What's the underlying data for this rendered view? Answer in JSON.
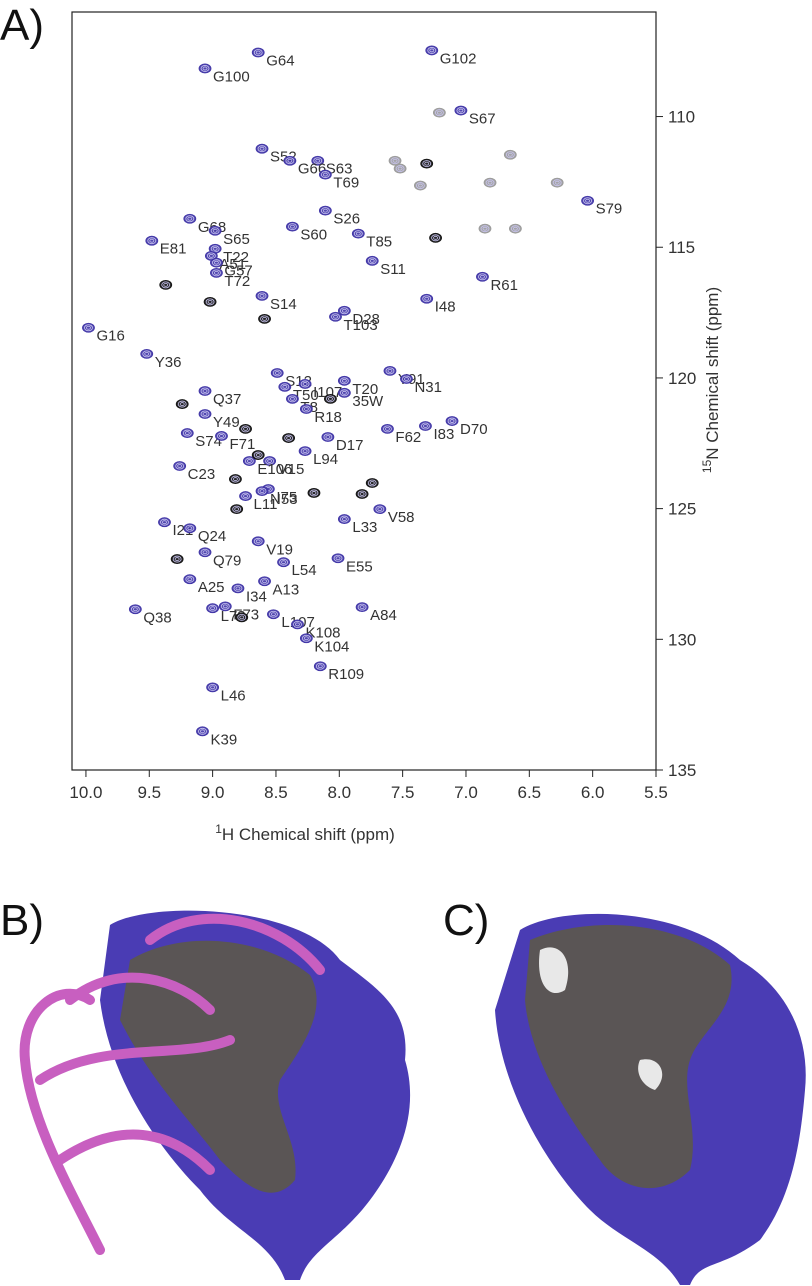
{
  "chart_data": {
    "type": "scatter",
    "panel_label": "A)",
    "x_label_sup": "1",
    "x_label": "H Chemical shift (ppm)",
    "y_label_sup": "15",
    "y_label": "N Chemical shift (ppm)",
    "xlim": [
      10.11,
      5.5
    ],
    "ylim": [
      135,
      106
    ],
    "xticks": [
      {
        "value": 10,
        "label": "10.0"
      },
      9.5,
      {
        "value": 9,
        "label": "9.0"
      },
      8.5,
      {
        "value": 8,
        "label": "8.0"
      },
      7.5,
      {
        "value": 7,
        "label": "7.0"
      },
      6.5,
      {
        "value": 6,
        "label": "6.0"
      },
      5.5
    ],
    "yticks": [
      110,
      115,
      120,
      125,
      130,
      135
    ],
    "series": [
      {
        "color": "#3f34a6",
        "labels": [
          "G64",
          "G100",
          "G102",
          "S67",
          "S52",
          "S63",
          "G66",
          "T69",
          "S79",
          "G68",
          "S65",
          "S26",
          "S60",
          "T85",
          "E81",
          "T22",
          "A51",
          "G57",
          "T72",
          "S11",
          "R61",
          "S14",
          "I48",
          "D28",
          "T103",
          "G16",
          "Y36",
          "S12",
          "I107",
          "T20",
          "Y91",
          "N31",
          "Q37",
          "T50",
          "35W",
          "T8",
          "R18",
          "Y49",
          "D70",
          "I83",
          "F62",
          "S74",
          "D17",
          "F71",
          "L94",
          "C23",
          "V15",
          "E106",
          "L11",
          "I75",
          "N53",
          "V58",
          "L33",
          "I21",
          "Q24",
          "V19",
          "Q79",
          "L54",
          "E55",
          "A25",
          "I34",
          "A13",
          "F73",
          "L73",
          "Q38",
          "L107",
          "A84",
          "K108",
          "K104",
          "R109",
          "L46",
          "K39"
        ],
        "x": [
          8.64,
          9.06,
          7.27,
          7.04,
          8.61,
          8.17,
          8.39,
          8.11,
          6.04,
          9.18,
          8.98,
          8.11,
          8.37,
          7.85,
          9.48,
          8.98,
          9.01,
          8.97,
          8.97,
          7.74,
          6.87,
          8.61,
          7.31,
          7.96,
          8.03,
          9.98,
          9.52,
          8.49,
          8.27,
          7.96,
          7.6,
          7.47,
          9.06,
          8.43,
          7.96,
          8.37,
          8.26,
          9.06,
          7.11,
          7.32,
          7.62,
          9.2,
          8.09,
          8.93,
          8.27,
          9.26,
          8.55,
          8.71,
          8.74,
          8.56,
          8.61,
          7.68,
          7.96,
          9.38,
          9.18,
          8.64,
          9.06,
          8.44,
          8.01,
          9.18,
          8.8,
          8.59,
          8.9,
          9.0,
          9.61,
          8.52,
          7.82,
          8.33,
          8.26,
          8.15,
          9.0,
          9.08
        ],
        "y": [
          107.55,
          108.16,
          107.47,
          109.77,
          111.23,
          111.69,
          111.69,
          112.22,
          113.22,
          113.91,
          114.37,
          113.6,
          114.21,
          114.48,
          114.75,
          115.06,
          115.33,
          115.59,
          115.98,
          115.52,
          116.13,
          116.86,
          116.97,
          117.43,
          117.66,
          118.08,
          119.08,
          119.81,
          120.23,
          120.11,
          119.73,
          120.04,
          120.5,
          120.34,
          120.57,
          120.8,
          121.19,
          121.38,
          121.65,
          121.84,
          121.95,
          122.11,
          122.26,
          122.22,
          122.8,
          123.37,
          123.18,
          123.18,
          124.52,
          124.25,
          124.33,
          125.02,
          125.4,
          125.52,
          125.75,
          126.25,
          126.67,
          127.05,
          126.9,
          127.7,
          128.05,
          127.78,
          128.74,
          128.81,
          128.85,
          129.04,
          128.77,
          129.43,
          129.96,
          131.03,
          131.84,
          133.52
        ]
      },
      {
        "color": "#111111",
        "x": [
          9.37,
          9.02,
          8.59,
          7.24,
          7.31,
          9.24,
          8.74,
          8.4,
          8.64,
          8.82,
          7.74,
          7.82,
          8.2,
          8.81,
          9.28,
          8.77,
          8.07
        ],
        "y": [
          116.44,
          117.09,
          117.74,
          114.64,
          111.8,
          121.0,
          121.95,
          122.3,
          122.95,
          123.87,
          124.02,
          124.44,
          124.4,
          125.02,
          126.93,
          129.16,
          120.8
        ]
      },
      {
        "color": "#9a9a9a",
        "x": [
          7.21,
          7.56,
          7.36,
          6.81,
          6.65,
          6.28,
          6.61,
          6.85,
          7.52
        ],
        "y": [
          109.85,
          111.69,
          112.64,
          112.53,
          111.46,
          112.53,
          114.29,
          114.29,
          111.99
        ]
      }
    ]
  },
  "panels": {
    "b": "B)",
    "c": "C)"
  }
}
